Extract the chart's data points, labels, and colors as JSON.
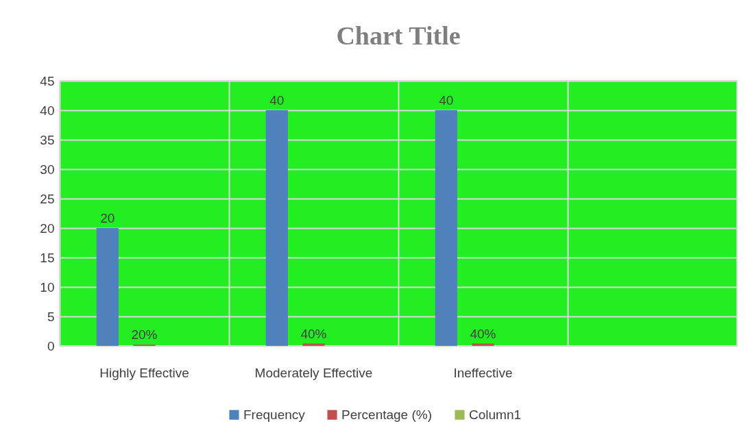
{
  "chart_data": {
    "type": "bar",
    "title": "Chart Title",
    "categories": [
      "Highly Effective",
      "Moderately Effective",
      "Ineffective",
      null
    ],
    "series": [
      {
        "name": "Frequency",
        "color": "#4f81bd",
        "values": [
          20,
          40,
          40,
          null
        ],
        "value_labels": [
          "20",
          "40",
          "40",
          null
        ]
      },
      {
        "name": "Percentage (%)",
        "color": "#c0504d",
        "values": [
          0.2,
          0.4,
          0.4,
          null
        ],
        "value_labels": [
          "20%",
          "40%",
          "40%",
          null
        ]
      },
      {
        "name": "Column1",
        "color": "#9bbb59",
        "values": [
          null,
          null,
          null,
          null
        ]
      }
    ],
    "ylim": [
      0,
      45
    ],
    "yticks": [
      0,
      5,
      10,
      15,
      20,
      25,
      30,
      35,
      40,
      45
    ],
    "grid": true,
    "legend": "bottom"
  }
}
